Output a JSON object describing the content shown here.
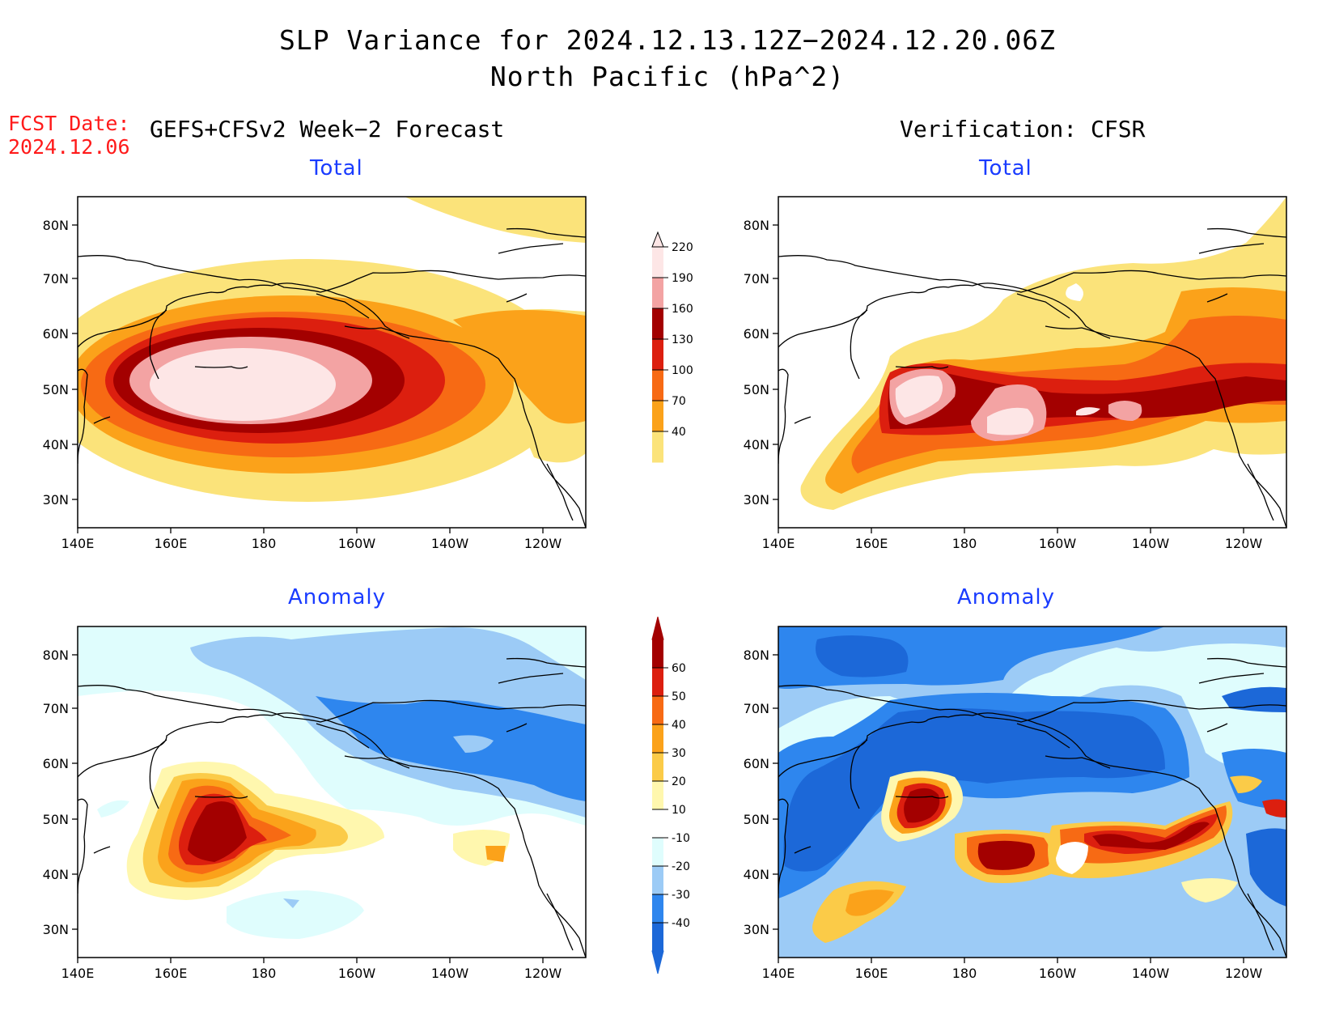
{
  "title_line1": "SLP Variance for 2024.12.13.12Z−2024.12.20.06Z",
  "title_line2": "North Pacific (hPa^2)",
  "fcst_label": "FCST Date:",
  "fcst_date": "2024.12.06",
  "left_header": "GEFS+CFSv2 Week−2 Forecast",
  "right_header": "Verification: CFSR",
  "panels": [
    {
      "id": "forecast-total",
      "subtitle": "Total"
    },
    {
      "id": "verification-total",
      "subtitle": "Total"
    },
    {
      "id": "forecast-anomaly",
      "subtitle": "Anomaly"
    },
    {
      "id": "verification-anomaly",
      "subtitle": "Anomaly"
    }
  ],
  "lat_ticks": [
    "30N",
    "40N",
    "50N",
    "60N",
    "70N",
    "80N"
  ],
  "lon_ticks": [
    "140E",
    "160E",
    "180",
    "160W",
    "140W",
    "120W"
  ],
  "total_colorbar": {
    "levels": [
      "40",
      "70",
      "100",
      "130",
      "160",
      "190",
      "220"
    ],
    "colors": [
      "#fbe37a",
      "#fba21a",
      "#f76a14",
      "#dc1f0f",
      "#a30000",
      "#f3a3a3",
      "#fde6e6"
    ]
  },
  "anomaly_colorbar": {
    "levels": [
      "-40",
      "-30",
      "-20",
      "-10",
      "10",
      "20",
      "30",
      "40",
      "50",
      "60"
    ],
    "colors": [
      "#1c68d8",
      "#2e86ee",
      "#9ccbf6",
      "#dffdfd",
      "#ffffff",
      "#fff7ae",
      "#fbcb48",
      "#fba21a",
      "#f76a14",
      "#dc1f0f",
      "#a30000"
    ]
  }
}
